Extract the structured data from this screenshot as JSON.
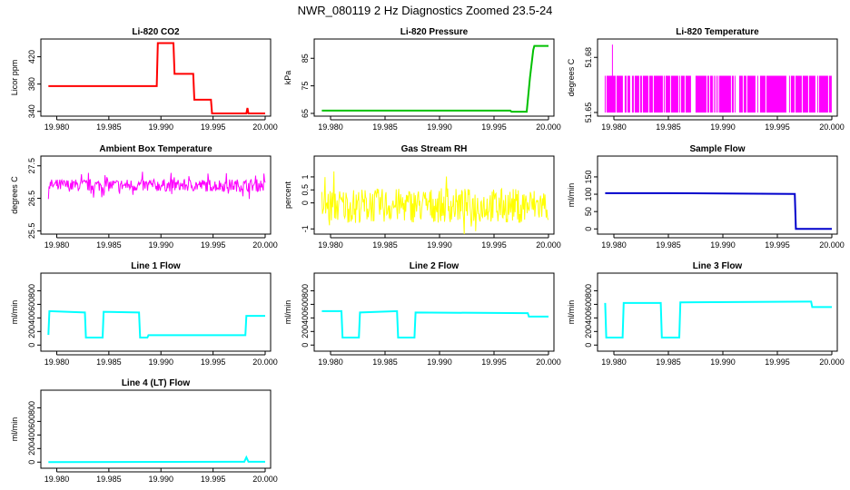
{
  "page": {
    "title": "NWR_080119  2 Hz Diagnostics Zoomed 23.5-24"
  },
  "chart_data": [
    {
      "type": "line",
      "title": "Li-820 CO2",
      "ylabel": "Licor ppm",
      "xlabel": "",
      "xlim": [
        19.979,
        20.0
      ],
      "ylim": [
        333,
        446
      ],
      "xticks": [
        "19.980",
        "19.985",
        "19.990",
        "19.995",
        "20.000"
      ],
      "yticks": [
        340,
        380,
        420
      ],
      "color": "#ff0000",
      "series": [
        {
          "x": [
            19.9792,
            19.9896,
            19.9897,
            19.9912,
            19.9913,
            19.9931,
            19.9932,
            19.9948,
            19.9949,
            19.9982,
            19.9983,
            19.9984,
            19.9985,
            20.0
          ],
          "y": [
            377,
            377,
            440,
            440,
            395,
            395,
            357,
            357,
            337,
            337,
            345,
            337,
            337,
            337
          ]
        }
      ]
    },
    {
      "type": "line",
      "title": "Li-820 Pressure",
      "ylabel": "kPa",
      "xlabel": "",
      "xlim": [
        19.979,
        20.0
      ],
      "ylim": [
        64,
        92
      ],
      "xticks": [
        "19.980",
        "19.985",
        "19.990",
        "19.995",
        "20.000"
      ],
      "yticks": [
        65,
        75,
        85
      ],
      "color": "#00c000",
      "series": [
        {
          "x": [
            19.9792,
            19.9965,
            19.9966,
            19.998,
            19.9983,
            19.9986,
            19.9987,
            20.0
          ],
          "y": [
            66,
            66,
            65.6,
            65.6,
            78,
            88,
            89.5,
            89.5
          ]
        }
      ]
    },
    {
      "type": "line",
      "title": "Li-820 Temperature",
      "ylabel": "degrees C",
      "xlabel": "",
      "xlim": [
        19.979,
        20.0
      ],
      "ylim": [
        51.648,
        51.69
      ],
      "xticks": [
        "19.980",
        "19.985",
        "19.990",
        "19.995",
        "20.000"
      ],
      "yticks": [
        51.65,
        51.68
      ],
      "color": "#ff00ff",
      "series": [
        {
          "x": [
            19.9792,
            19.9795,
            19.9798,
            20.0
          ],
          "y": [
            51.67,
            51.65,
            51.687,
            51.67
          ]
        }
      ]
    },
    {
      "type": "line",
      "title": "Ambient Box Temperature",
      "ylabel": "degrees C",
      "xlabel": "",
      "xlim": [
        19.979,
        20.0
      ],
      "ylim": [
        25.4,
        27.8
      ],
      "xticks": [
        "19.980",
        "19.985",
        "19.990",
        "19.995",
        "20.000"
      ],
      "yticks": [
        25.5,
        26.5,
        27.5
      ],
      "color": "#ff00ff",
      "series": [
        {
          "x": [
            19.9792,
            19.985,
            19.99,
            19.995,
            19.9985,
            20.0
          ],
          "y": [
            26.9,
            26.9,
            26.9,
            26.9,
            26.95,
            27.0
          ]
        }
      ]
    },
    {
      "type": "line",
      "title": "Gas Stream RH",
      "ylabel": "percent",
      "xlabel": "",
      "xlim": [
        19.979,
        20.0
      ],
      "ylim": [
        -1.2,
        1.8
      ],
      "xticks": [
        "19.980",
        "19.985",
        "19.990",
        "19.995",
        "20.000"
      ],
      "yticks": [
        -1.0,
        0.0,
        0.5,
        1.0
      ],
      "color": "#ffff00",
      "series": [
        {
          "x": [
            19.9792,
            19.985,
            19.99,
            19.995,
            20.0
          ],
          "y": [
            -0.1,
            -0.1,
            -0.1,
            -0.1,
            -0.1
          ]
        }
      ]
    },
    {
      "type": "line",
      "title": "Sample Flow",
      "ylabel": "ml/min",
      "xlabel": "",
      "xlim": [
        19.979,
        20.0
      ],
      "ylim": [
        -15,
        210
      ],
      "xticks": [
        "19.980",
        "19.985",
        "19.990",
        "19.995",
        "20.000"
      ],
      "yticks": [
        0,
        50,
        100,
        150
      ],
      "color": "#0000cc",
      "series": [
        {
          "x": [
            19.9792,
            19.985,
            19.9965,
            19.9966,
            19.9967,
            20.0
          ],
          "y": [
            103,
            103,
            101,
            101,
            0,
            0
          ]
        }
      ]
    },
    {
      "type": "line",
      "title": "Line 1 Flow",
      "ylabel": "ml/min",
      "xlabel": "",
      "xlim": [
        19.979,
        20.0
      ],
      "ylim": [
        -90,
        1060
      ],
      "xticks": [
        "19.980",
        "19.985",
        "19.990",
        "19.995",
        "20.000"
      ],
      "yticks": [
        0,
        200,
        400,
        600,
        800
      ],
      "color": "#00ffff",
      "series": [
        {
          "x": [
            19.9792,
            19.9793,
            19.9827,
            19.9828,
            19.9844,
            19.9845,
            19.9879,
            19.988,
            19.9887,
            19.9888,
            19.9981,
            19.9982,
            20.0
          ],
          "y": [
            150,
            500,
            480,
            110,
            110,
            490,
            480,
            110,
            110,
            145,
            145,
            430,
            430
          ]
        }
      ]
    },
    {
      "type": "line",
      "title": "Line 2 Flow",
      "ylabel": "ml/min",
      "xlabel": "",
      "xlim": [
        19.979,
        20.0
      ],
      "ylim": [
        -90,
        1060
      ],
      "xticks": [
        "19.980",
        "19.985",
        "19.990",
        "19.995",
        "20.000"
      ],
      "yticks": [
        0,
        200,
        400,
        600,
        800
      ],
      "color": "#00ffff",
      "series": [
        {
          "x": [
            19.9792,
            19.981,
            19.9811,
            19.9826,
            19.9827,
            19.9861,
            19.9862,
            19.9877,
            19.9878,
            19.9981,
            19.9982,
            20.0
          ],
          "y": [
            500,
            500,
            110,
            110,
            480,
            500,
            110,
            110,
            480,
            470,
            420,
            420
          ]
        }
      ]
    },
    {
      "type": "line",
      "title": "Line 3 Flow",
      "ylabel": "ml/min",
      "xlabel": "",
      "xlim": [
        19.979,
        20.0
      ],
      "ylim": [
        -90,
        1060
      ],
      "xticks": [
        "19.980",
        "19.985",
        "19.990",
        "19.995",
        "20.000"
      ],
      "yticks": [
        0,
        200,
        400,
        600,
        800
      ],
      "color": "#00ffff",
      "series": [
        {
          "x": [
            19.9792,
            19.9793,
            19.9808,
            19.9809,
            19.9843,
            19.9844,
            19.986,
            19.9861,
            19.9981,
            19.9982,
            20.0
          ],
          "y": [
            620,
            110,
            110,
            620,
            620,
            110,
            110,
            630,
            640,
            560,
            560
          ]
        }
      ]
    },
    {
      "type": "line",
      "title": "Line 4 (LT) Flow",
      "ylabel": "ml/min",
      "xlabel": "",
      "xlim": [
        19.979,
        20.0
      ],
      "ylim": [
        -90,
        1060
      ],
      "xticks": [
        "19.980",
        "19.985",
        "19.990",
        "19.995",
        "20.000"
      ],
      "yticks": [
        0,
        200,
        400,
        600,
        800
      ],
      "color": "#00ffff",
      "series": [
        {
          "x": [
            19.9792,
            19.998,
            19.9982,
            19.9984,
            20.0
          ],
          "y": [
            0,
            5,
            70,
            5,
            5
          ]
        }
      ]
    }
  ]
}
